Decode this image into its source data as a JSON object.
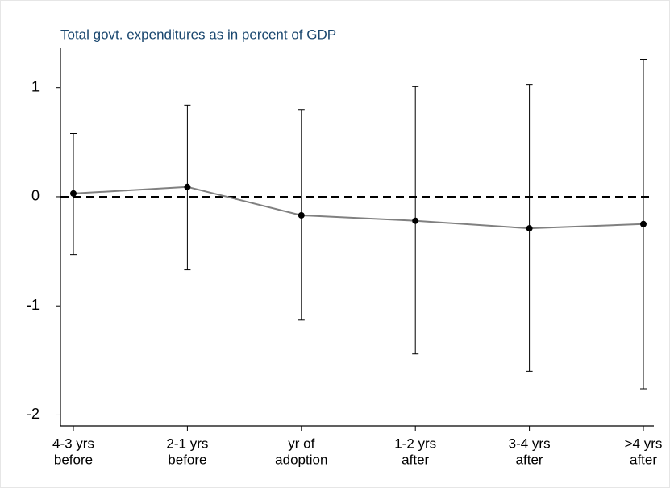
{
  "chart_data": {
    "type": "line",
    "title": "Total govt. expenditures as in percent of GDP",
    "categories": [
      [
        "4-3 yrs",
        "before"
      ],
      [
        "2-1 yrs",
        "before"
      ],
      [
        "yr of",
        "adoption"
      ],
      [
        "1-2 yrs",
        "after"
      ],
      [
        "3-4 yrs",
        "after"
      ],
      [
        ">4 yrs",
        "after"
      ]
    ],
    "series": [
      {
        "color": "#808080",
        "marker_color": "#000000",
        "values": [
          0.03,
          0.09,
          -0.17,
          -0.22,
          -0.29,
          -0.25
        ],
        "ci_high": [
          0.58,
          0.84,
          0.8,
          1.01,
          1.03,
          1.26
        ],
        "ci_low": [
          -0.53,
          -0.67,
          -1.13,
          -1.44,
          -1.6,
          -1.76
        ]
      }
    ],
    "reference_line": 0,
    "ylim": [
      -2.1,
      1.36
    ],
    "yticks": [
      -2,
      -1,
      0,
      1
    ]
  }
}
